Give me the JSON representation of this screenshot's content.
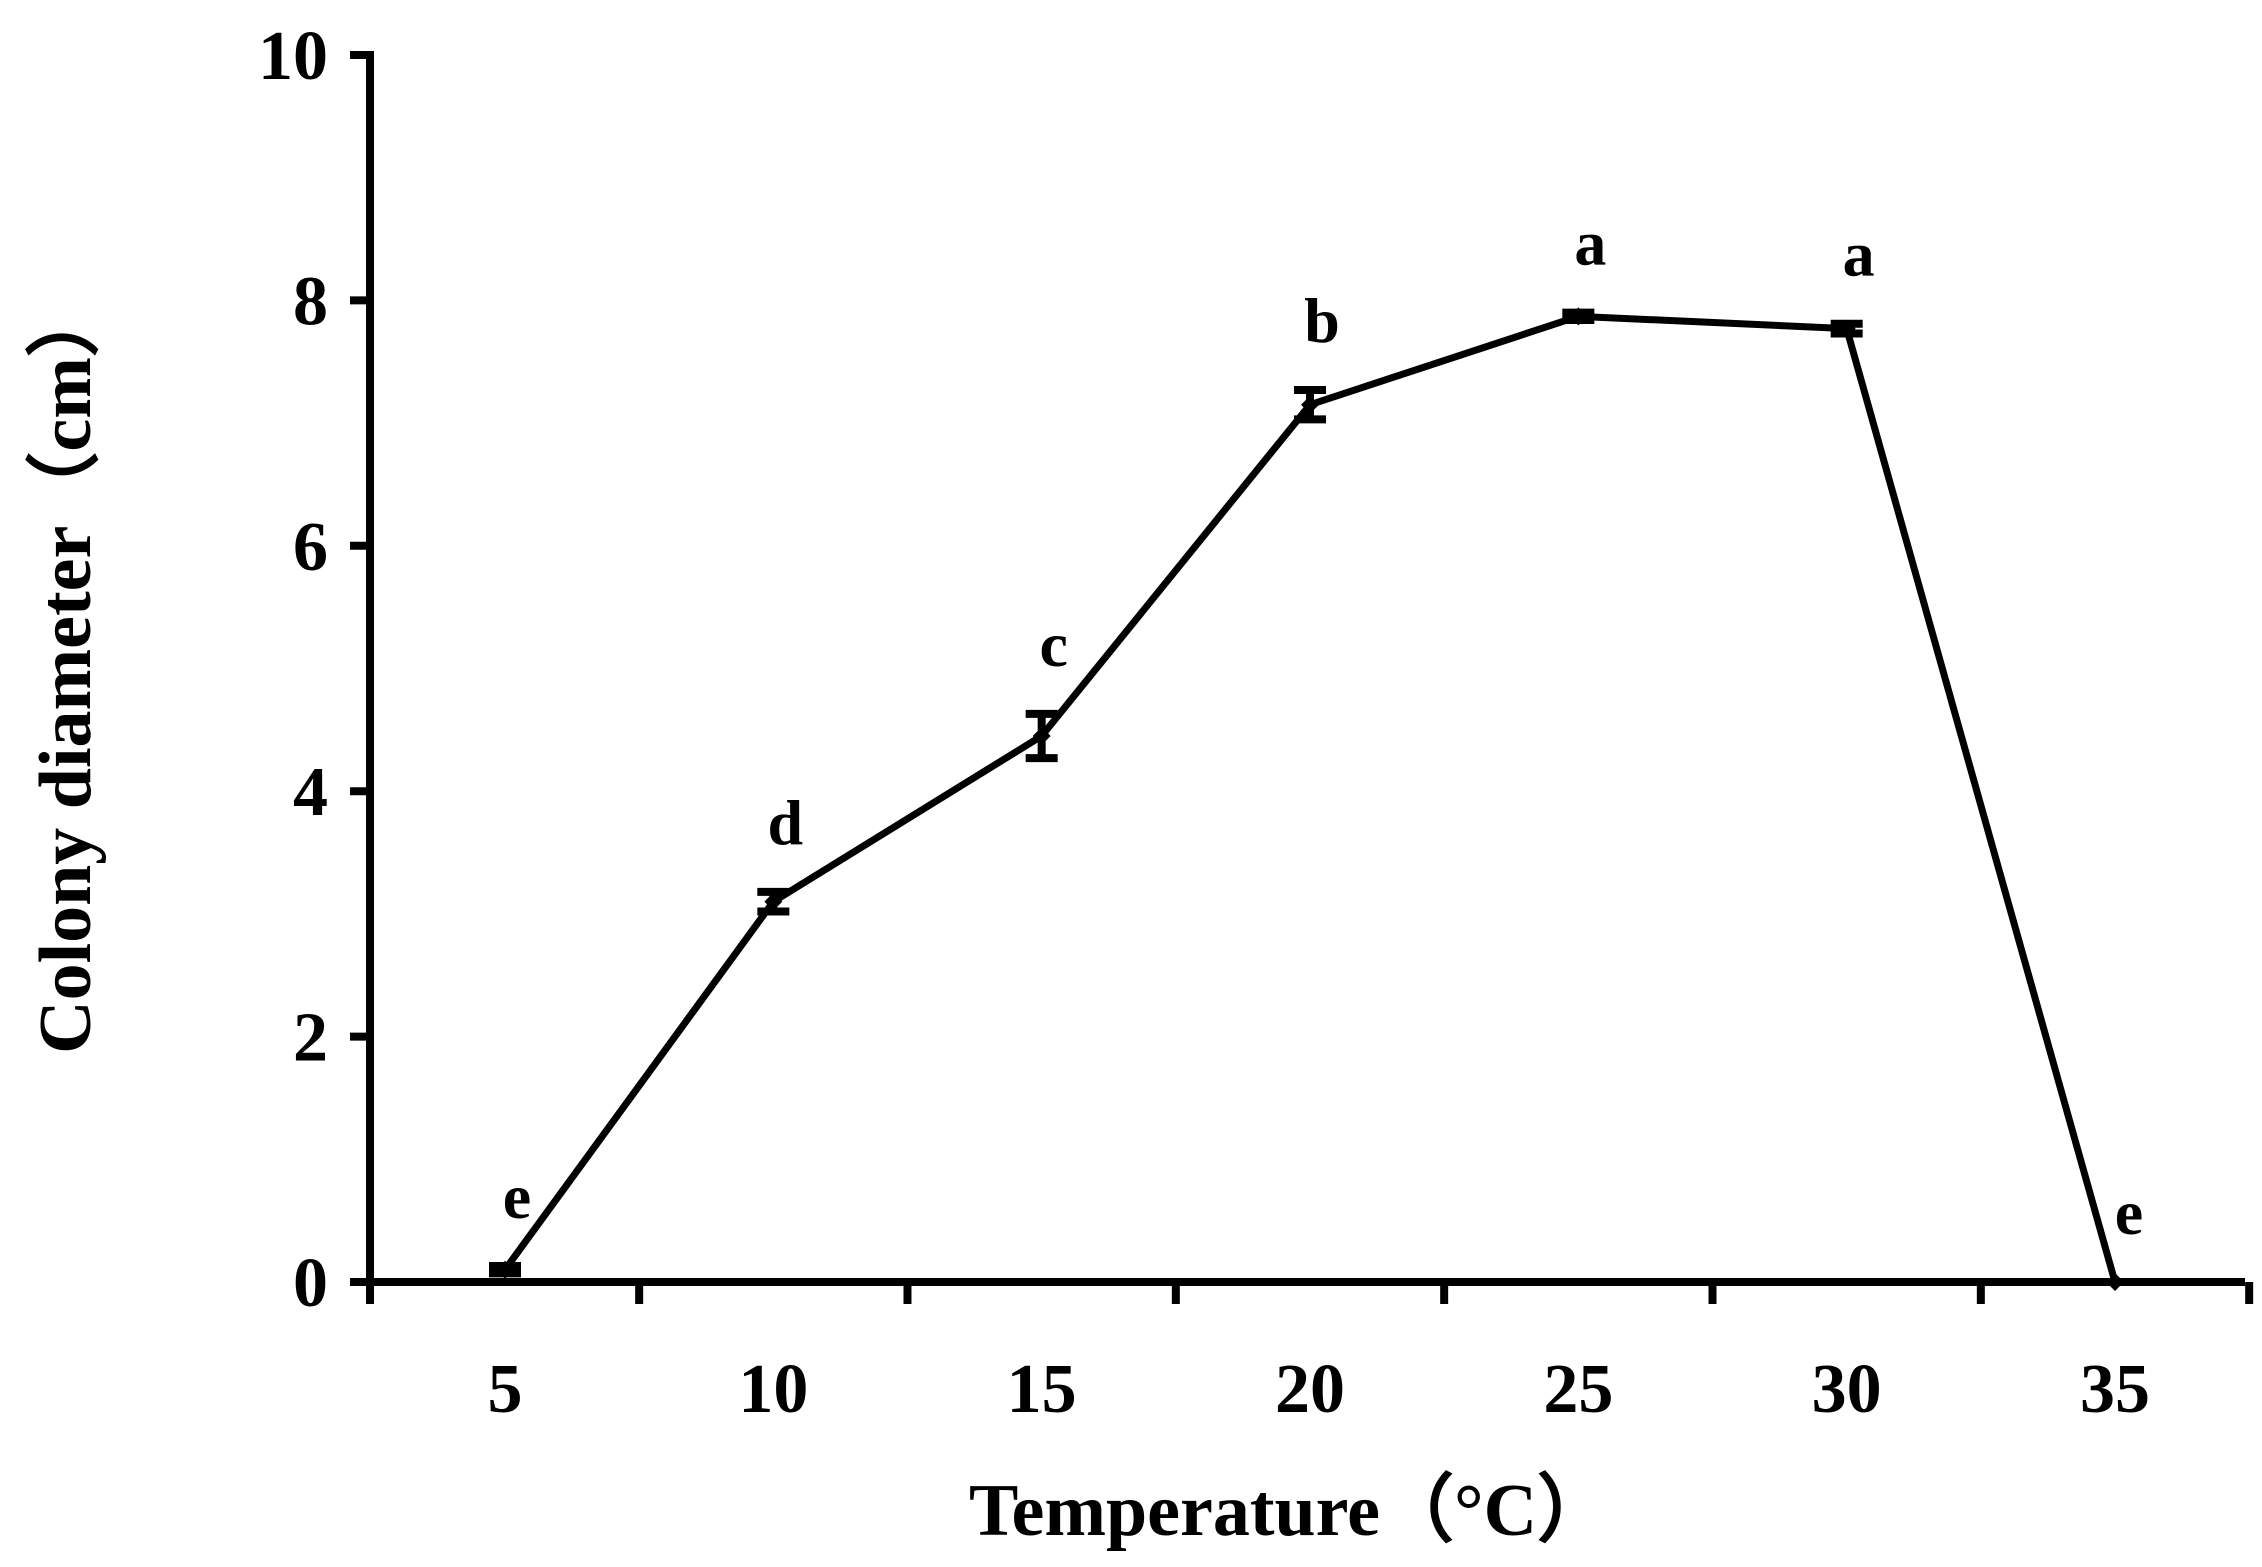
{
  "chart_data": {
    "type": "line",
    "title": "",
    "xlabel": "Temperature（°C）",
    "ylabel": "Colony diameter（cm）",
    "x": [
      5,
      10,
      15,
      20,
      25,
      30,
      35
    ],
    "x_tick_labels": [
      "5",
      "10",
      "15",
      "20",
      "25",
      "30",
      "35"
    ],
    "y_ticks": [
      0,
      2,
      4,
      6,
      8,
      10
    ],
    "y_tick_labels": [
      "0",
      "2",
      "4",
      "6",
      "8",
      "10"
    ],
    "ylim": [
      0,
      10
    ],
    "xlim": [
      2.5,
      37.5
    ],
    "grid": false,
    "series": [
      {
        "name": "Colony diameter",
        "values": [
          0.1,
          3.1,
          4.45,
          7.15,
          7.87,
          7.77,
          0
        ],
        "errors": [
          0.03,
          0.08,
          0.18,
          0.12,
          0.03,
          0.04,
          0
        ],
        "significance": [
          "e",
          "d",
          "c",
          "b",
          "a",
          "a",
          "e"
        ]
      }
    ]
  }
}
